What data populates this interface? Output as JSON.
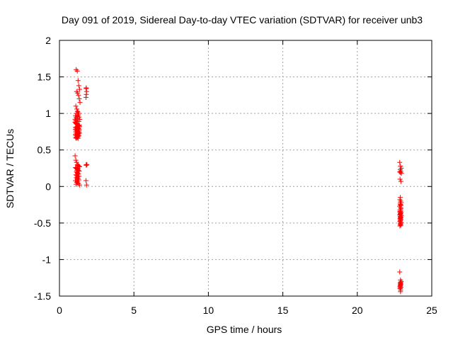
{
  "chart_data": {
    "type": "scatter",
    "title": "Day 091 of 2019, Sidereal Day-to-day VTEC variation (SDTVAR) for receiver unb3",
    "xlabel": "GPS time / hours",
    "ylabel": "SDTVAR / TECUs",
    "xlim": [
      0,
      25
    ],
    "ylim": [
      -1.5,
      2
    ],
    "xticks": [
      0,
      5,
      10,
      15,
      20,
      25
    ],
    "yticks": [
      -1.5,
      -1,
      -0.5,
      0,
      0.5,
      1,
      1.5,
      2
    ],
    "xtick_labels": [
      "0",
      "5",
      "10",
      "15",
      "20",
      "25"
    ],
    "ytick_labels": [
      "-1.5",
      "-1",
      "-0.5",
      "0",
      "0.5",
      "1",
      "1.5",
      "2"
    ],
    "grid": true,
    "marker": "+",
    "color": "#ff0000",
    "series": [
      {
        "x": [
          1.12,
          1.2,
          1.25,
          1.3,
          1.35,
          1.15,
          1.22,
          1.28,
          1.33,
          1.38,
          1.1,
          1.17,
          1.24,
          1.3,
          1.26,
          1.32,
          1.21,
          1.37,
          1.13,
          1.29,
          1.05,
          1.1,
          1.15,
          1.2,
          1.25,
          1.3,
          1.35,
          1.08,
          1.12,
          1.18,
          1.23,
          1.27,
          1.33,
          1.06,
          1.14,
          1.19,
          1.22,
          1.31,
          1.1,
          1.16,
          1.24,
          1.29,
          1.36,
          1.12,
          1.2,
          1.26,
          1.07,
          1.17,
          1.3,
          1.11,
          1.21,
          1.28,
          1.15,
          1.23,
          1.09,
          1.19,
          1.13,
          1.25,
          1.18,
          1.06,
          1.1,
          1.15,
          1.05,
          1.12,
          1.08,
          1.14,
          1.2,
          1.22,
          1.18,
          1.16,
          1.34,
          1.12,
          1.28,
          1.05,
          1.1,
          1.15,
          1.2,
          1.25,
          1.3,
          1.35,
          1.08,
          1.12,
          1.18,
          1.23,
          1.27,
          1.33,
          1.14,
          1.19,
          1.22,
          1.29,
          1.1,
          1.16,
          1.24,
          1.2,
          1.13,
          1.26,
          1.18,
          1.3,
          1.07,
          1.23,
          1.15,
          1.2,
          1.28,
          1.12,
          1.35,
          1.17,
          1.21,
          1.25,
          1.32,
          1.8,
          1.82,
          1.78,
          1.8,
          1.84,
          1.8,
          1.78,
          1.82,
          1.8,
          1.79,
          22.85,
          22.9,
          22.95,
          22.88,
          22.92,
          22.85,
          22.9,
          22.96,
          22.87,
          22.93,
          22.89,
          22.86,
          22.91,
          22.95,
          22.88,
          22.92,
          22.84,
          22.9,
          22.94,
          22.87,
          22.91,
          22.86,
          22.93,
          22.89,
          22.9,
          22.85,
          22.95,
          22.88,
          22.92,
          22.9,
          22.87,
          22.93,
          22.89,
          22.9,
          22.86,
          22.91,
          22.94,
          22.88,
          22.9,
          22.92,
          22.86,
          22.89,
          22.93,
          22.9,
          22.88,
          22.91,
          22.87,
          22.9,
          22.89,
          22.92,
          22.85,
          22.9,
          22.95,
          22.88,
          22.92,
          22.9,
          22.87,
          22.93,
          22.89,
          22.91,
          22.9,
          22.88,
          22.92,
          22.86,
          22.9
        ],
        "y": [
          1.6,
          1.58,
          1.45,
          1.38,
          1.33,
          1.3,
          1.28,
          1.25,
          1.2,
          1.15,
          1.1,
          1.06,
          1.02,
          1.0,
          0.98,
          0.95,
          0.93,
          0.92,
          0.9,
          0.89,
          0.88,
          0.87,
          0.86,
          0.85,
          0.84,
          0.83,
          0.82,
          0.81,
          0.8,
          0.8,
          0.79,
          0.79,
          0.78,
          0.78,
          0.77,
          0.77,
          0.76,
          0.76,
          0.75,
          0.75,
          0.74,
          0.74,
          0.73,
          0.73,
          0.72,
          0.72,
          0.71,
          0.71,
          0.7,
          0.7,
          0.69,
          0.69,
          0.68,
          0.68,
          0.67,
          0.67,
          0.66,
          0.66,
          0.85,
          0.88,
          0.9,
          0.93,
          0.92,
          0.95,
          0.97,
          1.0,
          1.03,
          0.96,
          0.82,
          0.78,
          0.84,
          0.86,
          0.8,
          0.42,
          0.36,
          0.33,
          0.3,
          0.29,
          0.28,
          0.27,
          0.26,
          0.25,
          0.24,
          0.23,
          0.22,
          0.21,
          0.2,
          0.19,
          0.18,
          0.17,
          0.16,
          0.15,
          0.14,
          0.13,
          0.12,
          0.11,
          0.1,
          0.09,
          0.08,
          0.07,
          0.06,
          0.05,
          0.04,
          0.03,
          0.02,
          0.22,
          0.18,
          0.25,
          0.14,
          1.35,
          1.3,
          1.22,
          1.26,
          0.3,
          0.29,
          0.08,
          0.02,
          0.3,
          1.34,
          0.33,
          0.28,
          0.25,
          0.23,
          0.21,
          0.2,
          0.19,
          0.18,
          0.1,
          0.07,
          -0.15,
          -0.18,
          -0.2,
          -0.22,
          -0.24,
          -0.25,
          -0.27,
          -0.29,
          -0.3,
          -0.32,
          -0.34,
          -0.35,
          -0.36,
          -0.37,
          -0.38,
          -0.39,
          -0.4,
          -0.41,
          -0.42,
          -0.43,
          -0.44,
          -0.45,
          -0.46,
          -0.47,
          -0.48,
          -0.49,
          -0.5,
          -0.51,
          -0.52,
          -0.53,
          -0.54,
          -0.32,
          -0.36,
          -0.38,
          -0.44,
          -0.43,
          -0.34,
          -0.42,
          -0.22,
          -0.26,
          -1.17,
          -1.28,
          -1.3,
          -1.32,
          -1.33,
          -1.35,
          -1.37,
          -1.38,
          -1.4,
          -1.42,
          -1.44,
          -1.36,
          -1.31,
          -1.39,
          -1.34
        ]
      }
    ]
  }
}
